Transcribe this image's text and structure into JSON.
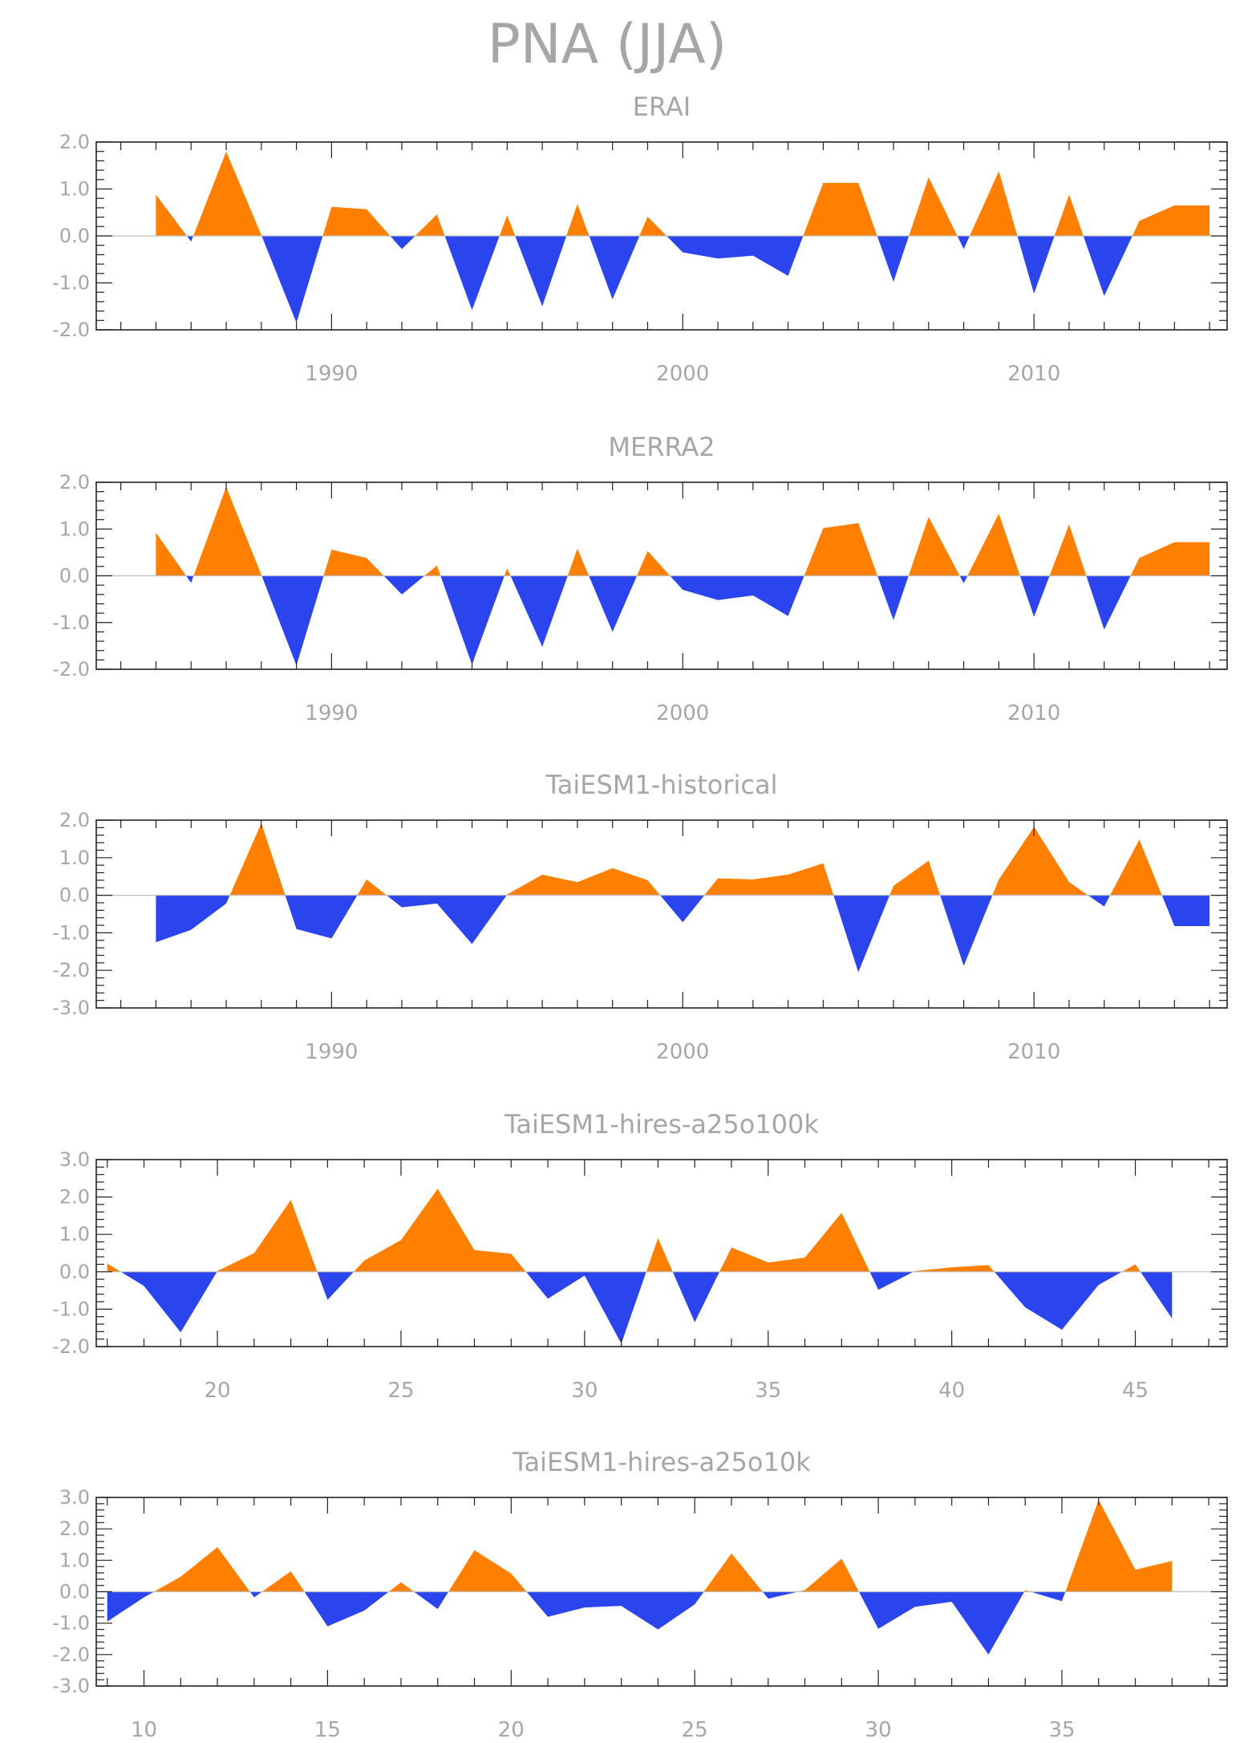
{
  "figure_title": "PNA (JJA)",
  "colors": {
    "positive": "#ff8000",
    "negative": "#2a44ee",
    "axis": "#222222",
    "text": "#a6a6a6",
    "zero_line": "#bdbdbd"
  },
  "chart_data": [
    {
      "type": "area",
      "title": "ERAI",
      "xlim": [
        1983.3,
        2015.5
      ],
      "ylim": [
        -2.0,
        2.0
      ],
      "yticks": [
        2.0,
        1.0,
        0.0,
        -1.0,
        -2.0
      ],
      "ytick_labels": [
        "2.0",
        "1.0",
        "0.0",
        "-1.0",
        "-2.0"
      ],
      "xticks": [
        1990,
        2000,
        2010
      ],
      "xtick_labels": [
        "1990",
        "2000",
        "2010"
      ],
      "x": [
        1985,
        1986,
        1987,
        1988,
        1989,
        1990,
        1991,
        1992,
        1993,
        1994,
        1995,
        1996,
        1997,
        1998,
        1999,
        2000,
        2001,
        2002,
        2003,
        2004,
        2005,
        2006,
        2007,
        2008,
        2009,
        2010,
        2011,
        2012,
        2013,
        2014,
        2015
      ],
      "values": [
        0.88,
        -0.12,
        1.8,
        0.02,
        -1.85,
        0.62,
        0.57,
        -0.28,
        0.46,
        -1.58,
        0.44,
        -1.5,
        0.68,
        -1.35,
        0.41,
        -0.35,
        -0.48,
        -0.42,
        -0.85,
        1.13,
        1.13,
        -0.98,
        1.25,
        -0.28,
        1.38,
        -1.23,
        0.88,
        -1.28,
        0.32,
        0.65,
        0.65
      ],
      "grid": false,
      "legend": "none"
    },
    {
      "type": "area",
      "title": "MERRA2",
      "xlim": [
        1983.3,
        2015.5
      ],
      "ylim": [
        -2.0,
        2.0
      ],
      "yticks": [
        2.0,
        1.0,
        0.0,
        -1.0,
        -2.0
      ],
      "ytick_labels": [
        "2.0",
        "1.0",
        "0.0",
        "-1.0",
        "-2.0"
      ],
      "xticks": [
        1990,
        2000,
        2010
      ],
      "xtick_labels": [
        "1990",
        "2000",
        "2010"
      ],
      "x": [
        1985,
        1986,
        1987,
        1988,
        1989,
        1990,
        1991,
        1992,
        1993,
        1994,
        1995,
        1996,
        1997,
        1998,
        1999,
        2000,
        2001,
        2002,
        2003,
        2004,
        2005,
        2006,
        2007,
        2008,
        2009,
        2010,
        2011,
        2012,
        2013,
        2014,
        2015
      ],
      "values": [
        0.92,
        -0.15,
        1.9,
        0.02,
        -1.92,
        0.56,
        0.38,
        -0.4,
        0.22,
        -1.9,
        0.16,
        -1.52,
        0.58,
        -1.2,
        0.53,
        -0.3,
        -0.52,
        -0.42,
        -0.86,
        1.02,
        1.13,
        -0.95,
        1.26,
        -0.16,
        1.33,
        -0.88,
        1.1,
        -1.15,
        0.38,
        0.72,
        0.72
      ],
      "grid": false,
      "legend": "none"
    },
    {
      "type": "area",
      "title": "TaiESM1-historical",
      "xlim": [
        1983.3,
        2015.5
      ],
      "ylim": [
        -3.0,
        2.0
      ],
      "yticks": [
        2.0,
        1.0,
        0.0,
        -1.0,
        -2.0,
        -3.0
      ],
      "ytick_labels": [
        "2.0",
        "1.0",
        "0.0",
        "-1.0",
        "-2.0",
        "-3.0"
      ],
      "xticks": [
        1990,
        2000,
        2010
      ],
      "xtick_labels": [
        "1990",
        "2000",
        "2010"
      ],
      "x": [
        1985,
        1986,
        1987,
        1988,
        1989,
        1990,
        1991,
        1992,
        1993,
        1994,
        1995,
        1996,
        1997,
        1998,
        1999,
        2000,
        2001,
        2002,
        2003,
        2004,
        2005,
        2006,
        2007,
        2008,
        2009,
        2010,
        2011,
        2012,
        2013,
        2014,
        2015
      ],
      "values": [
        -1.25,
        -0.92,
        -0.22,
        1.92,
        -0.9,
        -1.15,
        0.42,
        -0.32,
        -0.22,
        -1.3,
        0.02,
        0.55,
        0.35,
        0.72,
        0.4,
        -0.72,
        0.45,
        0.42,
        0.55,
        0.85,
        -2.05,
        0.25,
        0.92,
        -1.88,
        0.42,
        1.82,
        0.35,
        -0.3,
        1.48,
        -0.82,
        -0.82
      ],
      "grid": false,
      "legend": "none"
    },
    {
      "type": "area",
      "title": "TaiESM1-hires-a25o100k",
      "xlim": [
        16.7,
        47.5
      ],
      "ylim": [
        -2.0,
        3.0
      ],
      "yticks": [
        3.0,
        2.0,
        1.0,
        0.0,
        -1.0,
        -2.0
      ],
      "ytick_labels": [
        "3.0",
        "2.0",
        "1.0",
        "0.0",
        "-1.0",
        "-2.0"
      ],
      "xticks": [
        20,
        25,
        30,
        35,
        40,
        45
      ],
      "xtick_labels": [
        "20",
        "25",
        "30",
        "35",
        "40",
        "45"
      ],
      "x": [
        17,
        18,
        19,
        20,
        21,
        22,
        23,
        24,
        25,
        26,
        27,
        28,
        29,
        30,
        31,
        32,
        33,
        34,
        35,
        36,
        37,
        38,
        39,
        40,
        41,
        42,
        43,
        44,
        45,
        46
      ],
      "values": [
        0.22,
        -0.38,
        -1.62,
        0.02,
        0.5,
        1.92,
        -0.75,
        0.3,
        0.85,
        2.22,
        0.58,
        0.48,
        -0.72,
        -0.1,
        -1.92,
        0.9,
        -1.35,
        0.65,
        0.25,
        0.38,
        1.58,
        -0.48,
        0.02,
        0.12,
        0.18,
        -0.95,
        -1.55,
        -0.35,
        0.2,
        -1.25
      ],
      "grid": false,
      "legend": "none"
    },
    {
      "type": "area",
      "title": "TaiESM1-hires-a25o10k",
      "xlim": [
        8.7,
        39.5
      ],
      "ylim": [
        -3.0,
        3.0
      ],
      "yticks": [
        3.0,
        2.0,
        1.0,
        0.0,
        -1.0,
        -2.0,
        -3.0
      ],
      "ytick_labels": [
        "3.0",
        "2.0",
        "1.0",
        "0.0",
        "-1.0",
        "-2.0",
        "-3.0"
      ],
      "xticks": [
        10,
        15,
        20,
        25,
        30,
        35
      ],
      "xtick_labels": [
        "10",
        "15",
        "20",
        "25",
        "30",
        "35"
      ],
      "x": [
        9,
        10,
        11,
        12,
        13,
        14,
        15,
        16,
        17,
        18,
        19,
        20,
        21,
        22,
        23,
        24,
        25,
        26,
        27,
        28,
        29,
        30,
        31,
        32,
        33,
        34,
        35,
        36,
        37,
        38
      ],
      "values": [
        -0.95,
        -0.18,
        0.48,
        1.42,
        -0.18,
        0.65,
        -1.1,
        -0.6,
        0.3,
        -0.55,
        1.32,
        0.58,
        -0.8,
        -0.5,
        -0.45,
        -1.2,
        -0.4,
        1.22,
        -0.22,
        0.05,
        1.05,
        -1.18,
        -0.48,
        -0.32,
        -2.0,
        0.05,
        -0.3,
        2.92,
        0.7,
        0.98
      ],
      "grid": false,
      "legend": "none"
    }
  ]
}
